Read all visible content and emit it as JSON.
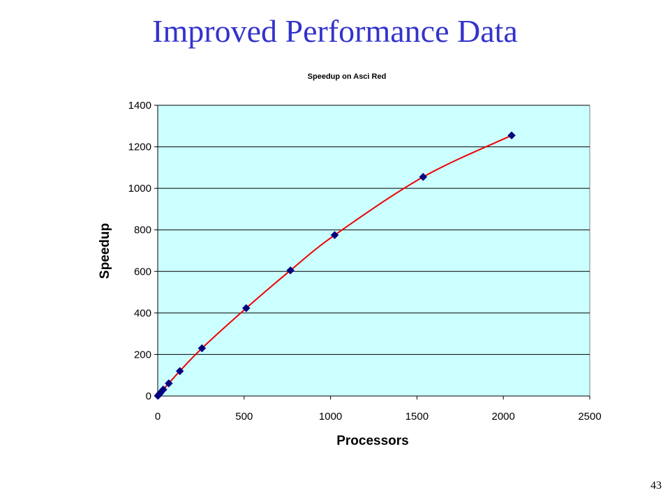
{
  "slide": {
    "title": "Improved Performance Data",
    "page_number": "43"
  },
  "colors": {
    "title": "#3333cc",
    "plot_background": "#ccffff",
    "curve": "#ee0000",
    "marker": "#000080",
    "grid": "#000000"
  },
  "chart_data": {
    "type": "scatter",
    "title": "Speedup on Asci Red",
    "xlabel": "Processors",
    "ylabel": "Speedup",
    "xlim": [
      0,
      2500
    ],
    "ylim": [
      0,
      1400
    ],
    "x_ticks": [
      0,
      500,
      1000,
      1500,
      2000,
      2500
    ],
    "y_ticks": [
      0,
      200,
      400,
      600,
      800,
      1000,
      1200,
      1400
    ],
    "grid": "horizontal",
    "legend": "none",
    "series": [
      {
        "marker": "diamond",
        "line": "smooth",
        "points": [
          {
            "x": 1,
            "y": 1
          },
          {
            "x": 4,
            "y": 4
          },
          {
            "x": 8,
            "y": 8
          },
          {
            "x": 16,
            "y": 16
          },
          {
            "x": 32,
            "y": 31
          },
          {
            "x": 64,
            "y": 61
          },
          {
            "x": 128,
            "y": 120
          },
          {
            "x": 256,
            "y": 230
          },
          {
            "x": 512,
            "y": 423
          },
          {
            "x": 768,
            "y": 605
          },
          {
            "x": 1024,
            "y": 775
          },
          {
            "x": 1536,
            "y": 1055
          },
          {
            "x": 2048,
            "y": 1255
          }
        ]
      }
    ]
  }
}
